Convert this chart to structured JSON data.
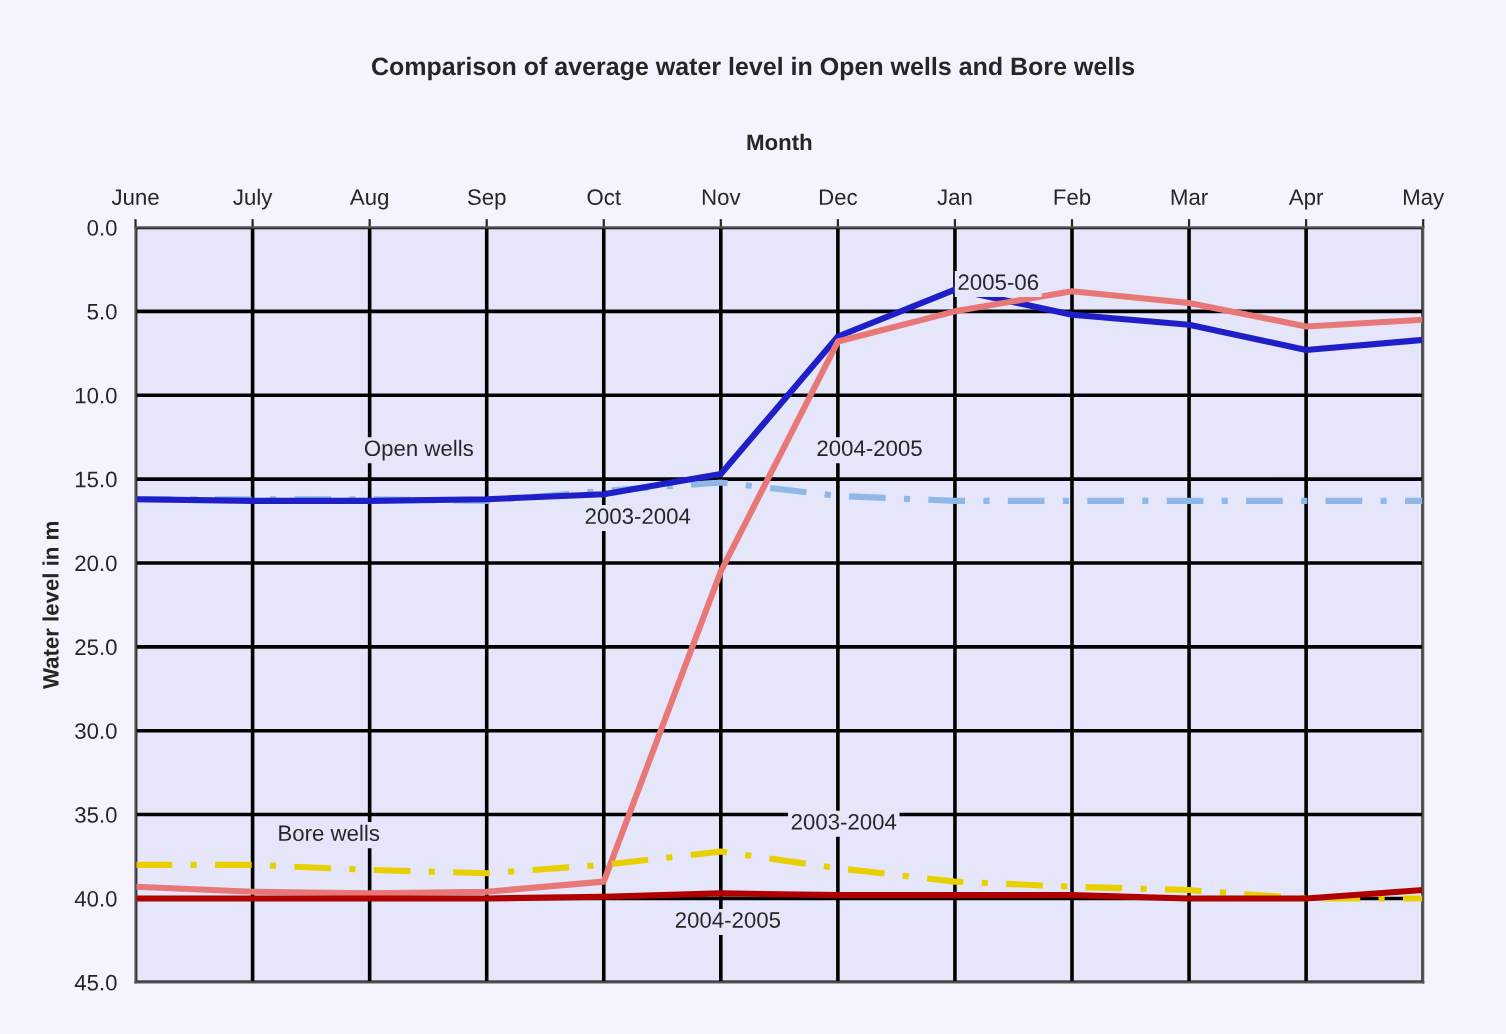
{
  "chart_data": {
    "type": "line",
    "title": "Comparison of average water level in Open wells and Bore wells",
    "xlabel": "Month",
    "ylabel": "Water level in m",
    "categories": [
      "June",
      "July",
      "Aug",
      "Sep",
      "Oct",
      "Nov",
      "Dec",
      "Jan",
      "Feb",
      "Mar",
      "Apr",
      "May"
    ],
    "ylim": [
      45,
      0
    ],
    "yticks": [
      {
        "value": 0,
        "label": "0.0"
      },
      {
        "value": 5,
        "label": "5.0"
      },
      {
        "value": 10,
        "label": "10.0"
      },
      {
        "value": 15,
        "label": "15.0"
      },
      {
        "value": 20,
        "label": "20.0"
      },
      {
        "value": 25,
        "label": "25.0"
      },
      {
        "value": 30,
        "label": "30.0"
      },
      {
        "value": 35,
        "label": "35.0"
      },
      {
        "value": 40,
        "label": "40.0"
      },
      {
        "value": 45,
        "label": "45.0"
      }
    ],
    "grid": true,
    "legend": false,
    "marker": "none",
    "series": [
      {
        "color": "#8fb8e8",
        "line_style": "dashed",
        "values": [
          16.2,
          16.2,
          16.2,
          16.3,
          15.7,
          15.2,
          16.0,
          16.3,
          16.3,
          16.3,
          16.3,
          16.3
        ]
      },
      {
        "color": "#1f1fc8",
        "line_style": "solid",
        "values": [
          16.2,
          16.3,
          16.3,
          16.2,
          15.9,
          14.7,
          6.5,
          3.7,
          5.2,
          5.8,
          7.3,
          6.7
        ]
      },
      {
        "color": "#e87878",
        "line_style": "solid",
        "values": [
          39.3,
          39.6,
          39.7,
          39.6,
          39.0,
          20.5,
          6.8,
          5.0,
          3.8,
          4.5,
          5.9,
          5.5
        ]
      },
      {
        "color": "#e8d000",
        "line_style": "dashed",
        "values": [
          38.0,
          38.0,
          38.3,
          38.5,
          38.0,
          37.2,
          38.2,
          39.0,
          39.3,
          39.5,
          40.0,
          40.0
        ]
      },
      {
        "color": "#b00000",
        "line_style": "solid",
        "values": [
          40.0,
          40.0,
          40.0,
          40.0,
          39.9,
          39.7,
          39.8,
          39.8,
          39.8,
          40.0,
          40.0,
          39.5
        ]
      }
    ],
    "annotations": [
      "Open wells",
      "2004-2005",
      "2003-2004",
      "2005-06",
      "Bore wells",
      "2003-2004",
      "2004-2005"
    ]
  }
}
